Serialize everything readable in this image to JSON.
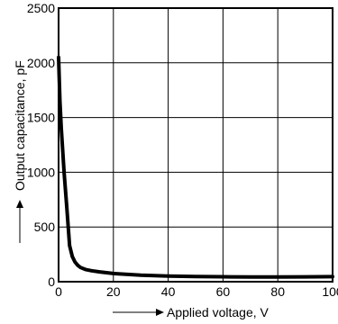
{
  "chart_data": {
    "type": "line",
    "title": "",
    "xlabel": "Applied voltage, V",
    "ylabel": "Output capacitance, pF",
    "xlim": [
      0,
      100
    ],
    "ylim": [
      0,
      2500
    ],
    "x_ticks": [
      "0",
      "20",
      "40",
      "60",
      "80",
      "100"
    ],
    "y_ticks": [
      "0",
      "500",
      "1000",
      "1500",
      "2000",
      "2500"
    ],
    "grid": true,
    "legend": "none",
    "series": [
      {
        "x": [
          0,
          0.5,
          1,
          2,
          3,
          4,
          5,
          6,
          7,
          8,
          10,
          12,
          15,
          20,
          30,
          40,
          50,
          60,
          70,
          80,
          90,
          100
        ],
        "values": [
          2050,
          1650,
          1400,
          1000,
          680,
          330,
          230,
          180,
          150,
          130,
          110,
          100,
          90,
          75,
          60,
          52,
          48,
          45,
          43,
          43,
          44,
          46
        ]
      }
    ],
    "colors": {
      "line": "#000000",
      "grid": "#000000"
    }
  }
}
